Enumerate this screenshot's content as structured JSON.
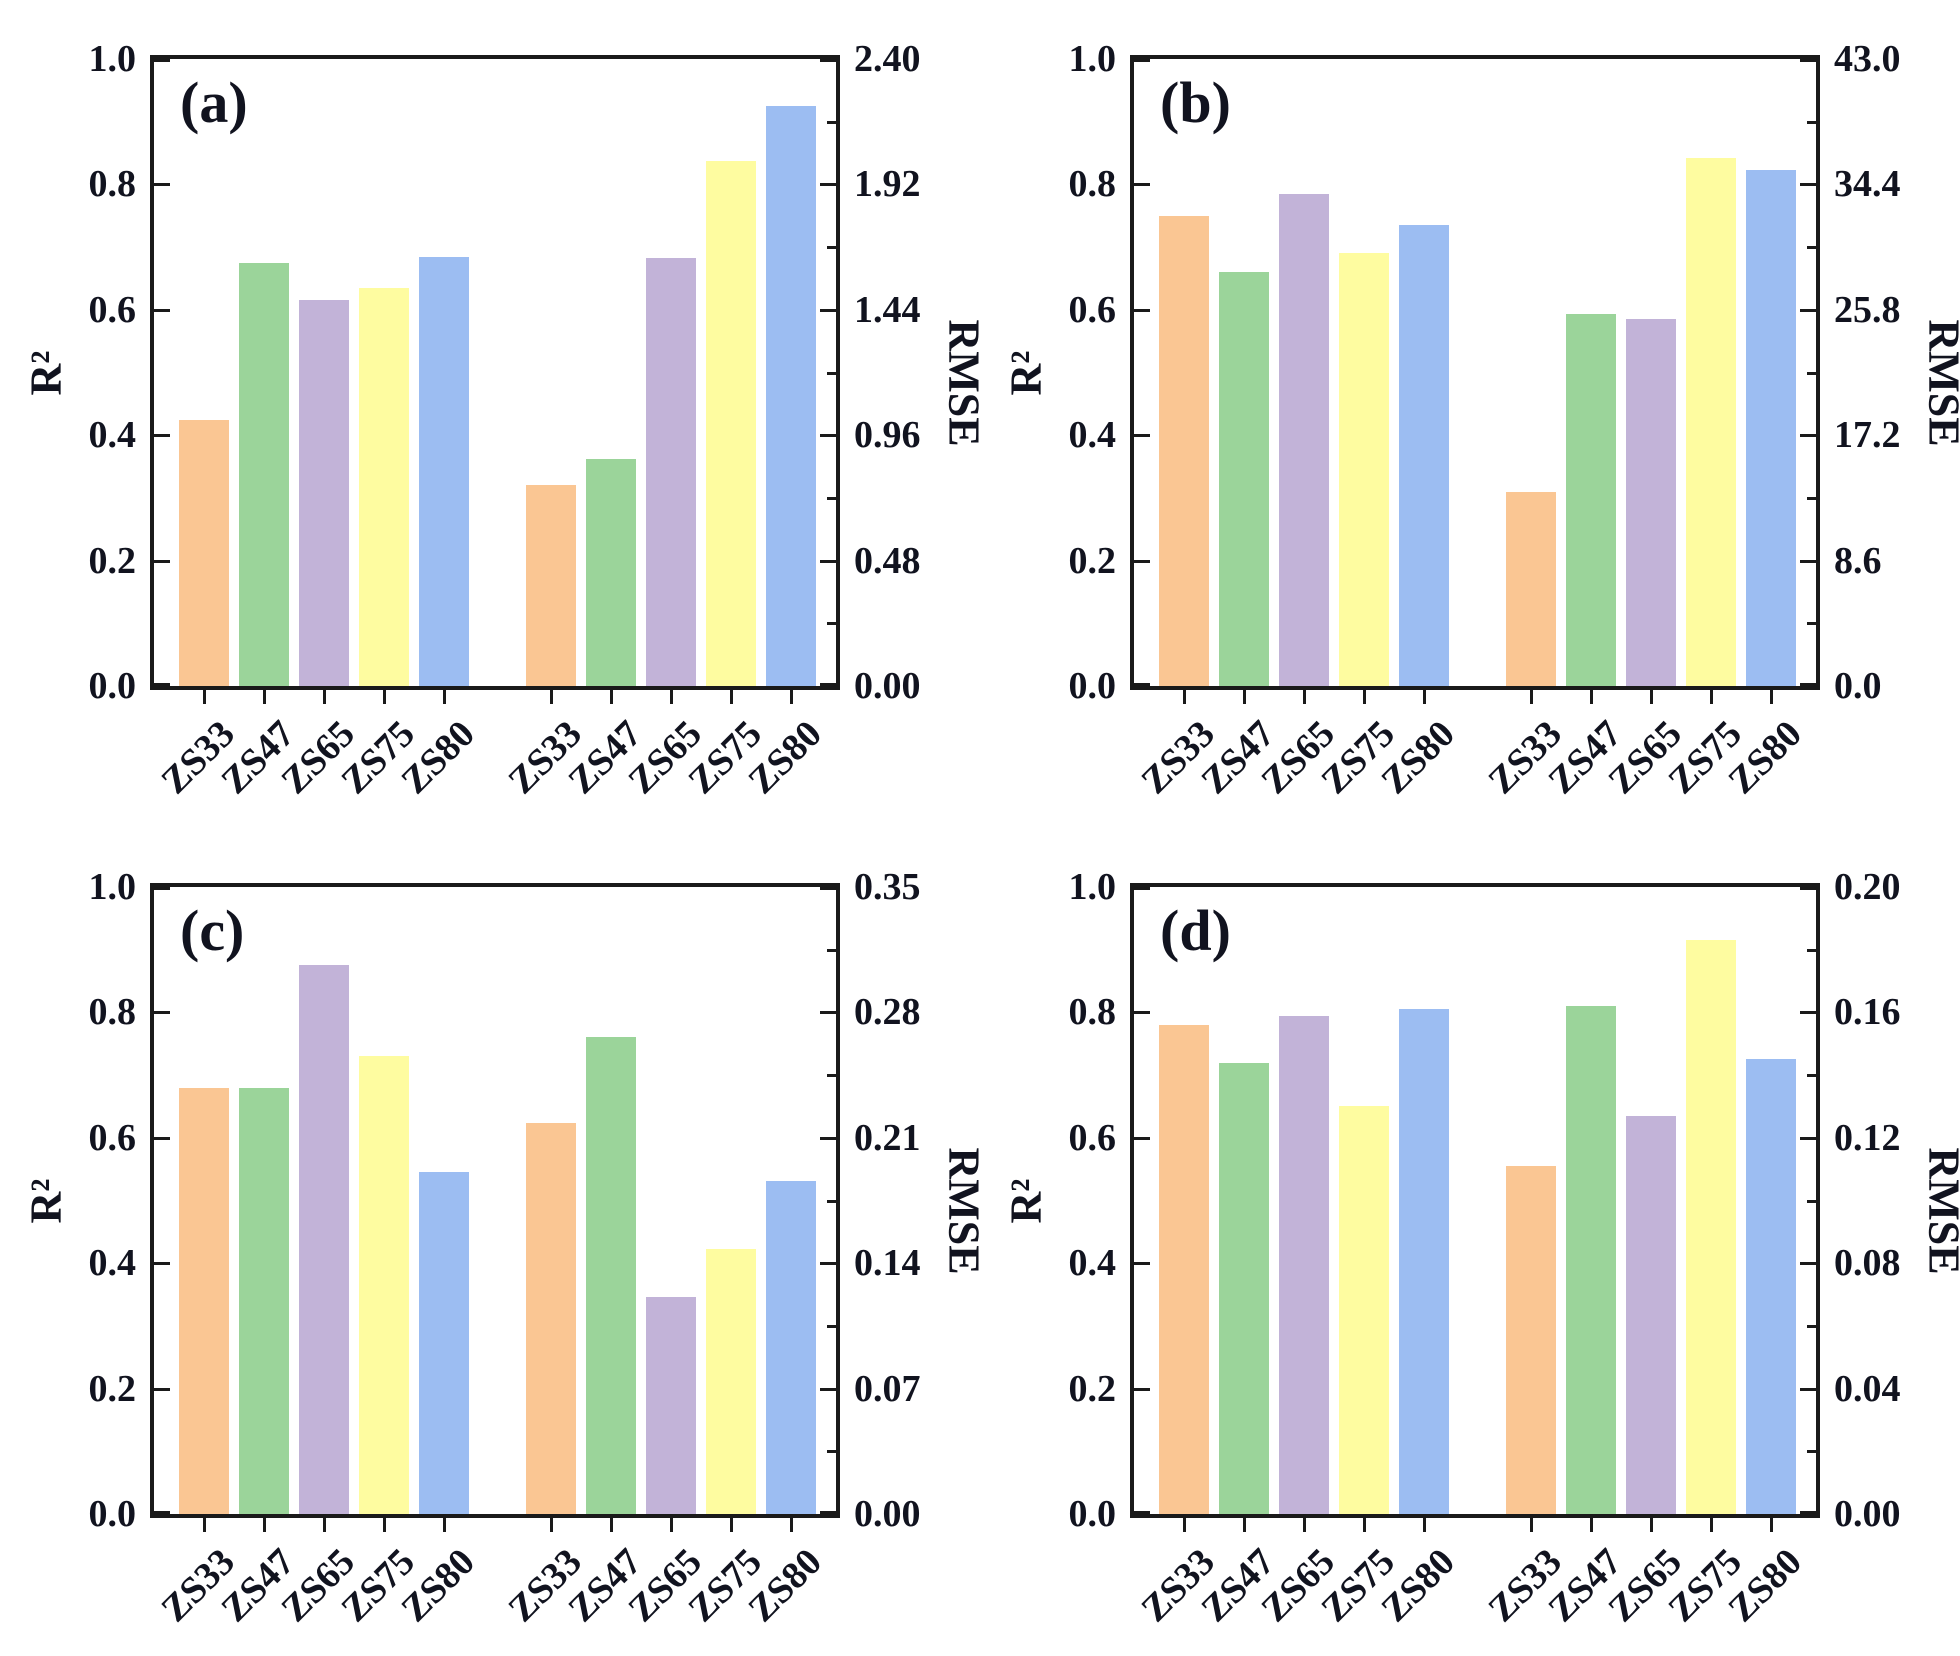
{
  "figure_label": "model-performance-figure",
  "colors": {
    "bar_palette": [
      "#FAC693",
      "#9BD49A",
      "#C2B3D8",
      "#FEFCA0",
      "#9CBDF2"
    ],
    "axis": "#1a1a1a",
    "text": "#11131f",
    "background": "#ffffff"
  },
  "axis_labels": {
    "left": "R²",
    "right": "RMSE"
  },
  "categories": [
    "ZS33",
    "ZS47",
    "ZS65",
    "ZS75",
    "ZS80"
  ],
  "chart_data": [
    {
      "type": "bar",
      "panel_label": "(a)",
      "categories": [
        "ZS33",
        "ZS47",
        "ZS65",
        "ZS75",
        "ZS80"
      ],
      "left_axis": {
        "label": "R²",
        "max": 1.0,
        "ticks": [
          "1.0",
          "0.8",
          "0.6",
          "0.4",
          "0.2",
          "0.0"
        ]
      },
      "right_axis": {
        "label": "RMSE",
        "max": 2.4,
        "ticks": [
          "2.40",
          "1.92",
          "1.44",
          "0.96",
          "0.48",
          "0.00"
        ]
      },
      "series": [
        {
          "name": "R²",
          "axis": "left",
          "values": [
            0.425,
            0.675,
            0.615,
            0.635,
            0.685
          ]
        },
        {
          "name": "RMSE",
          "axis": "right",
          "values": [
            0.77,
            0.87,
            1.64,
            2.01,
            2.22
          ]
        }
      ],
      "legend": "none",
      "grid": "off"
    },
    {
      "type": "bar",
      "panel_label": "(b)",
      "categories": [
        "ZS33",
        "ZS47",
        "ZS65",
        "ZS75",
        "ZS80"
      ],
      "left_axis": {
        "label": "R²",
        "max": 1.0,
        "ticks": [
          "1.0",
          "0.8",
          "0.6",
          "0.4",
          "0.2",
          "0.0"
        ]
      },
      "right_axis": {
        "label": "RMSE",
        "max": 43.0,
        "ticks": [
          "43.0",
          "34.4",
          "25.8",
          "17.2",
          "8.6",
          "0.0"
        ]
      },
      "series": [
        {
          "name": "R²",
          "axis": "left",
          "values": [
            0.75,
            0.66,
            0.785,
            0.69,
            0.735
          ]
        },
        {
          "name": "RMSE",
          "axis": "right",
          "values": [
            13.3,
            25.5,
            25.2,
            36.2,
            35.4
          ]
        }
      ],
      "legend": "none",
      "grid": "off"
    },
    {
      "type": "bar",
      "panel_label": "(c)",
      "categories": [
        "ZS33",
        "ZS47",
        "ZS65",
        "ZS75",
        "ZS80"
      ],
      "left_axis": {
        "label": "R²",
        "max": 1.0,
        "ticks": [
          "1.0",
          "0.8",
          "0.6",
          "0.4",
          "0.2",
          "0.0"
        ]
      },
      "right_axis": {
        "label": "RMSE",
        "max": 0.35,
        "ticks": [
          "0.35",
          "0.28",
          "0.21",
          "0.14",
          "0.07",
          "0.00"
        ]
      },
      "series": [
        {
          "name": "R²",
          "axis": "left",
          "values": [
            0.68,
            0.68,
            0.875,
            0.73,
            0.545
          ]
        },
        {
          "name": "RMSE",
          "axis": "right",
          "values": [
            0.218,
            0.266,
            0.121,
            0.148,
            0.186
          ]
        }
      ],
      "legend": "none",
      "grid": "off"
    },
    {
      "type": "bar",
      "panel_label": "(d)",
      "categories": [
        "ZS33",
        "ZS47",
        "ZS65",
        "ZS75",
        "ZS80"
      ],
      "left_axis": {
        "label": "R²",
        "max": 1.0,
        "ticks": [
          "1.0",
          "0.8",
          "0.6",
          "0.4",
          "0.2",
          "0.0"
        ]
      },
      "right_axis": {
        "label": "RMSE",
        "max": 0.2,
        "ticks": [
          "0.20",
          "0.16",
          "0.12",
          "0.08",
          "0.04",
          "0.00"
        ]
      },
      "series": [
        {
          "name": "R²",
          "axis": "left",
          "values": [
            0.78,
            0.72,
            0.795,
            0.65,
            0.805
          ]
        },
        {
          "name": "RMSE",
          "axis": "right",
          "values": [
            0.111,
            0.162,
            0.127,
            0.183,
            0.145
          ]
        }
      ],
      "legend": "none",
      "grid": "off"
    }
  ]
}
